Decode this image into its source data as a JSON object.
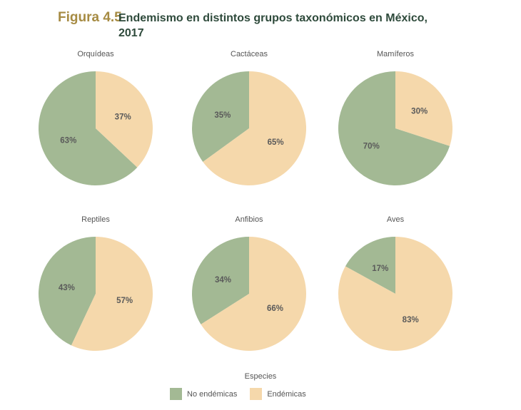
{
  "figure": {
    "label": "Figura 4.5",
    "title": "Endemismo en distintos grupos taxonómicos en México, 2017"
  },
  "colors": {
    "no_endemicas": "#a3b994",
    "endemicas": "#f5d8ab"
  },
  "legend": {
    "title": "Especies",
    "items": [
      "No endémicas",
      "Endémicas"
    ]
  },
  "chart_data": [
    {
      "type": "pie",
      "title": "Orquídeas",
      "labels": [
        "No endémicas",
        "Endémicas"
      ],
      "values": [
        63,
        37
      ],
      "display": [
        "63%",
        "37%"
      ]
    },
    {
      "type": "pie",
      "title": "Cactáceas",
      "labels": [
        "No endémicas",
        "Endémicas"
      ],
      "values": [
        35,
        65
      ],
      "display": [
        "35%",
        "65%"
      ]
    },
    {
      "type": "pie",
      "title": "Mamíferos",
      "labels": [
        "No endémicas",
        "Endémicas"
      ],
      "values": [
        70,
        30
      ],
      "display": [
        "70%",
        "30%"
      ]
    },
    {
      "type": "pie",
      "title": "Reptiles",
      "labels": [
        "No endémicas",
        "Endémicas"
      ],
      "values": [
        43,
        57
      ],
      "display": [
        "43%",
        "57%"
      ]
    },
    {
      "type": "pie",
      "title": "Anfibios",
      "labels": [
        "No endémicas",
        "Endémicas"
      ],
      "values": [
        34,
        66
      ],
      "display": [
        "34%",
        "66%"
      ]
    },
    {
      "type": "pie",
      "title": "Aves",
      "labels": [
        "No endémicas",
        "Endémicas"
      ],
      "values": [
        17,
        83
      ],
      "display": [
        "17%",
        "83%"
      ]
    }
  ]
}
